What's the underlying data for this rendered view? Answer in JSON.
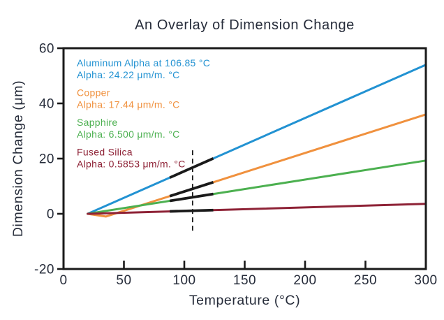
{
  "chart_data": {
    "type": "line",
    "title": "An Overlay of Dimension Change",
    "xlabel": "Temperature (°C)",
    "ylabel": "Dimension Change (μm)",
    "xlim": [
      0,
      300
    ],
    "ylim": [
      -20,
      60
    ],
    "x_ticks": [
      0,
      50,
      100,
      150,
      200,
      250,
      300
    ],
    "y_ticks": [
      -20,
      0,
      20,
      40,
      60
    ],
    "grid": false,
    "frame": true,
    "text_color": "#262c3a",
    "axis_color": "#1a1a1a",
    "legend_position": "inside-top-left",
    "series": [
      {
        "name": "aluminum",
        "legend": [
          "Aluminum Alpha at 106.85 °C",
          "Alpha: 24.22 μm/m. °C"
        ],
        "color": "#2292d2",
        "points": [
          [
            20,
            0
          ],
          [
            300,
            54
          ]
        ]
      },
      {
        "name": "copper",
        "legend": [
          "Copper",
          "Alpha: 17.44 μm/m. °C"
        ],
        "color": "#f0913e",
        "points": [
          [
            20,
            0
          ],
          [
            35,
            -1.0
          ],
          [
            300,
            36
          ]
        ]
      },
      {
        "name": "sapphire",
        "legend": [
          "Sapphire",
          "Alpha: 6.500 μm/m. °C"
        ],
        "color": "#4cb050",
        "points": [
          [
            20,
            0
          ],
          [
            300,
            19.3
          ]
        ]
      },
      {
        "name": "fused-silica",
        "legend": [
          "Fused Silica",
          "Alpha: 0.5853 μm/m. °C"
        ],
        "color": "#8e2236",
        "points": [
          [
            20,
            0
          ],
          [
            300,
            3.6
          ]
        ]
      }
    ],
    "annotations": {
      "highlight_segments": {
        "x_start": 88,
        "x_end": 124,
        "color": "#1a1a1a"
      },
      "vertical_dashed_line": {
        "x": 106.85,
        "y_top": 23,
        "y_bottom": -7,
        "color": "#1a1a1a"
      }
    }
  }
}
